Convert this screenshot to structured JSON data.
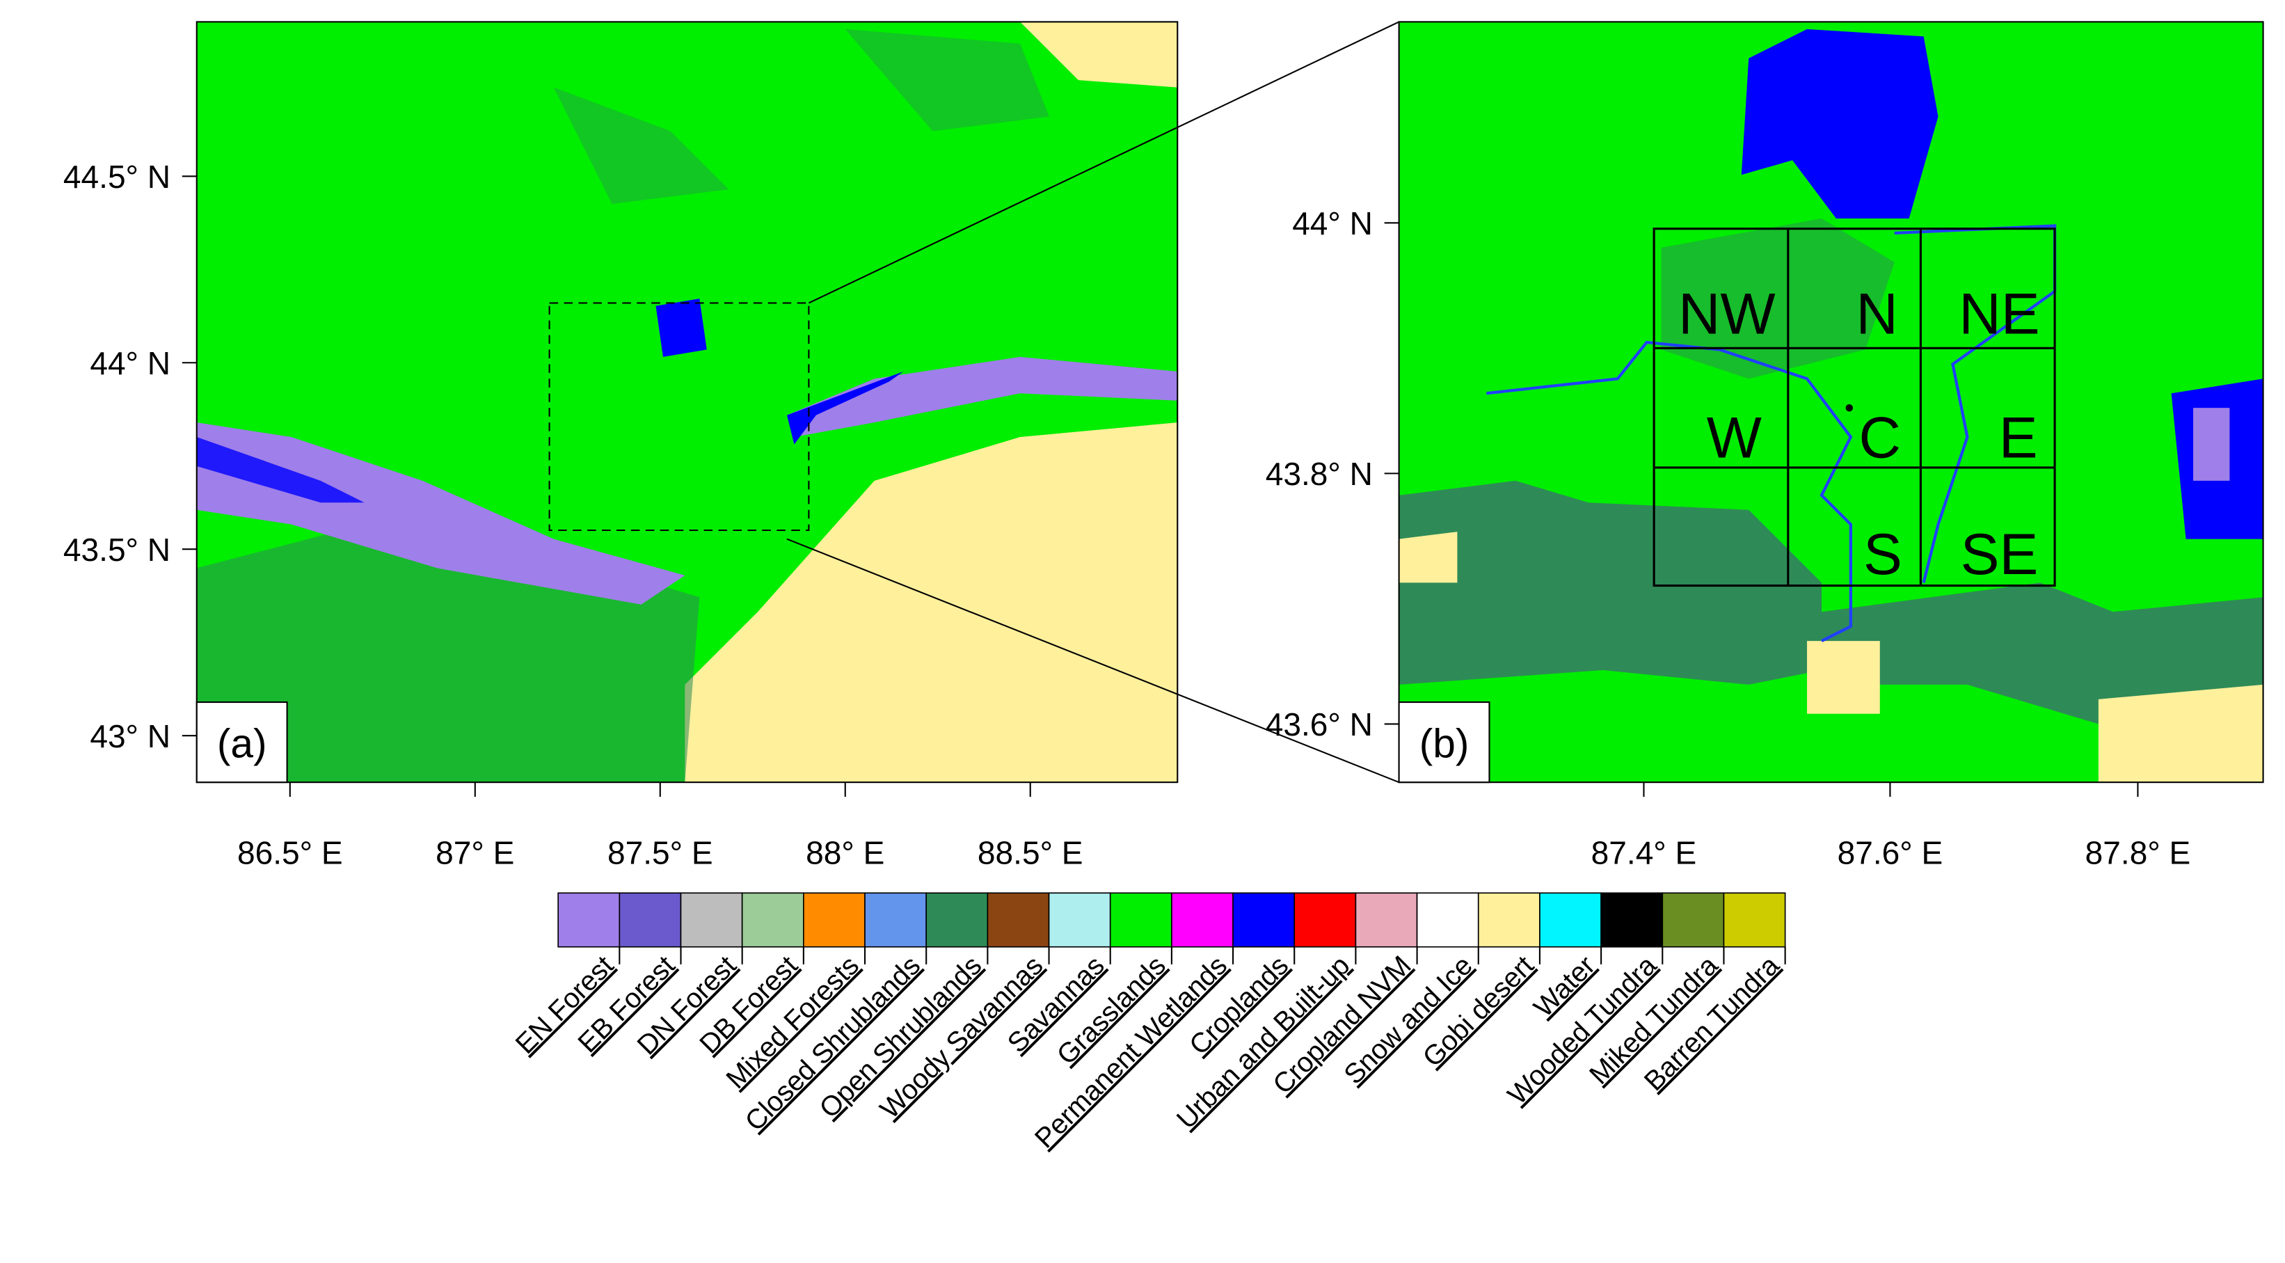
{
  "panels": [
    {
      "label": "(a)",
      "yticks": [
        "44.5° N",
        "44° N",
        "43.5° N",
        "43° N"
      ],
      "xticks": [
        "86.5° E",
        "87° E",
        "87.5° E",
        "88° E",
        "88.5° E"
      ]
    },
    {
      "label": "(b)",
      "yticks": [
        "44° N",
        "43.8° N",
        "43.6° N"
      ],
      "xticks": [
        "87.4° E",
        "87.6° E",
        "87.8° E"
      ],
      "regions": [
        "NW",
        "N",
        "NE",
        "W",
        "C",
        "E",
        "S",
        "SE"
      ]
    }
  ],
  "legend": [
    {
      "name": "EN Forest",
      "color": "#9f7fe9"
    },
    {
      "name": "EB Forest",
      "color": "#6a5acd"
    },
    {
      "name": "DN Forest",
      "color": "#bdbdbd"
    },
    {
      "name": "DB Forest",
      "color": "#9ccc98"
    },
    {
      "name": "Mixed Forests",
      "color": "#ff8c00"
    },
    {
      "name": "Closed Shrublands",
      "color": "#6495ed"
    },
    {
      "name": "Open Shrublands",
      "color": "#2e8b57"
    },
    {
      "name": "Woody Savannas",
      "color": "#8b4513"
    },
    {
      "name": "Savannas",
      "color": "#afeeee"
    },
    {
      "name": "Grasslands",
      "color": "#00ee00"
    },
    {
      "name": "Permanent Wetlands",
      "color": "#ff00ff"
    },
    {
      "name": "Croplands",
      "color": "#0000ff"
    },
    {
      "name": "Urban and Built-up",
      "color": "#ff0000"
    },
    {
      "name": "Cropland NVM",
      "color": "#e9a9b9"
    },
    {
      "name": "Snow and Ice",
      "color": "#ffffff"
    },
    {
      "name": "Gobi desert",
      "color": "#fff09c"
    },
    {
      "name": "Water",
      "color": "#00f5ff"
    },
    {
      "name": "Wooded Tundra",
      "color": "#000000"
    },
    {
      "name": "Miked Tundra",
      "color": "#6b8e23"
    },
    {
      "name": "Barren Tundra",
      "color": "#cccc00"
    }
  ]
}
